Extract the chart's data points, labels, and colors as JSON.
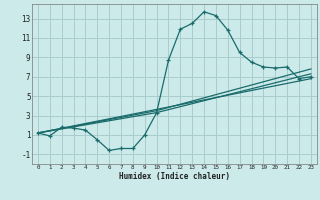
{
  "bg_color": "#cceaea",
  "grid_color": "#aacccc",
  "line_color": "#1a6b6b",
  "xlabel": "Humidex (Indice chaleur)",
  "xlim": [
    -0.5,
    23.5
  ],
  "ylim": [
    -2.0,
    14.5
  ],
  "xticks": [
    0,
    1,
    2,
    3,
    4,
    5,
    6,
    7,
    8,
    9,
    10,
    11,
    12,
    13,
    14,
    15,
    16,
    17,
    18,
    19,
    20,
    21,
    22,
    23
  ],
  "yticks": [
    -1,
    1,
    3,
    5,
    7,
    9,
    11,
    13
  ],
  "curve1_x": [
    0,
    1,
    2,
    3,
    4,
    5,
    6,
    7,
    8,
    9,
    10,
    11,
    12,
    13,
    14,
    15,
    16,
    17,
    18,
    19,
    20,
    21,
    22,
    23
  ],
  "curve1_y": [
    1.2,
    0.9,
    1.8,
    1.7,
    1.5,
    0.5,
    -0.6,
    -0.4,
    -0.4,
    1.0,
    3.3,
    8.7,
    11.9,
    12.5,
    13.7,
    13.3,
    11.8,
    9.5,
    8.5,
    8.0,
    7.9,
    8.0,
    6.8,
    7.0
  ],
  "line1_x": [
    0,
    23
  ],
  "line1_y": [
    1.2,
    6.8
  ],
  "line2_x": [
    0,
    10,
    23
  ],
  "line2_y": [
    1.2,
    3.5,
    7.8
  ],
  "line3_x": [
    0,
    10,
    23
  ],
  "line3_y": [
    1.2,
    3.3,
    7.3
  ]
}
